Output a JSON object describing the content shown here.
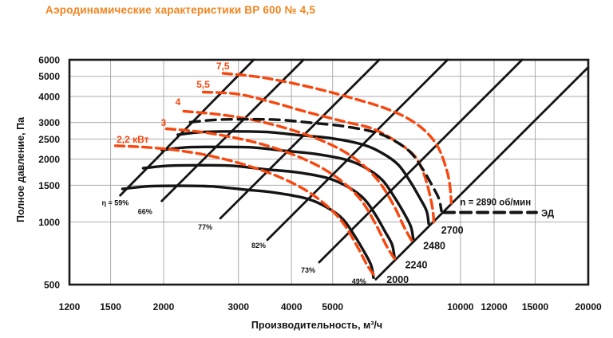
{
  "title": "Аэродинамические характеристики ВР 600 № 4,5",
  "colors": {
    "title": "#f5831d",
    "power_curves": "#f8470e",
    "rpm_curves": "#141414",
    "grid": "#ababab",
    "plot_border": "#1a1a1a",
    "background": "#ffffff"
  },
  "chart_data": {
    "type": "line",
    "title": "Аэродинамические характеристики ВР 600 № 4,5",
    "xlabel": "Производительность, м³/ч",
    "ylabel": "Полное давление, Па",
    "x_scale": "log",
    "y_scale": "log",
    "xlim": [
      1200,
      20000
    ],
    "ylim": [
      500,
      6000
    ],
    "x_ticks": [
      "1200",
      "1500",
      "2000",
      "3000",
      "4000",
      "5000",
      "10000",
      "12000",
      "15000",
      "20000"
    ],
    "x_tick_values": [
      1200,
      1500,
      2000,
      3000,
      4000,
      5000,
      10000,
      12000,
      15000,
      20000
    ],
    "y_ticks": [
      "6000",
      "5000",
      "4000",
      "3000",
      "2500",
      "2000",
      "1500",
      "1000",
      "500"
    ],
    "y_tick_values": [
      6000,
      5000,
      4000,
      3000,
      2500,
      2000,
      1500,
      1000,
      500
    ],
    "grid": true,
    "legend_position": "inline",
    "series": [
      {
        "id": "rpm-curve-2000",
        "name": "n = 2000 об/мин",
        "role": "rpm",
        "style": "solid",
        "points": [
          [
            1600,
            1440
          ],
          [
            1830,
            1480
          ],
          [
            2180,
            1490
          ],
          [
            2590,
            1480
          ],
          [
            3080,
            1430
          ],
          [
            3670,
            1380
          ],
          [
            4360,
            1290
          ],
          [
            4860,
            1170
          ],
          [
            5290,
            1030
          ],
          [
            5630,
            860
          ],
          [
            5930,
            720
          ],
          [
            6160,
            620
          ],
          [
            6240,
            540
          ]
        ]
      },
      {
        "id": "rpm-curve-2240",
        "name": "n = 2240 об/мин",
        "role": "rpm",
        "style": "solid",
        "points": [
          [
            1790,
            1810
          ],
          [
            2050,
            1860
          ],
          [
            2440,
            1870
          ],
          [
            2900,
            1860
          ],
          [
            3450,
            1790
          ],
          [
            4110,
            1730
          ],
          [
            4880,
            1620
          ],
          [
            5440,
            1470
          ],
          [
            5930,
            1290
          ],
          [
            6310,
            1080
          ],
          [
            6640,
            900
          ],
          [
            6900,
            780
          ],
          [
            6990,
            680
          ]
        ]
      },
      {
        "id": "rpm-curve-2480",
        "name": "n = 2480 об/мин",
        "role": "rpm",
        "style": "solid",
        "points": [
          [
            1980,
            2210
          ],
          [
            2270,
            2280
          ],
          [
            2700,
            2290
          ],
          [
            3210,
            2280
          ],
          [
            3820,
            2200
          ],
          [
            4550,
            2120
          ],
          [
            5410,
            1980
          ],
          [
            6030,
            1800
          ],
          [
            6560,
            1580
          ],
          [
            6980,
            1320
          ],
          [
            7350,
            1110
          ],
          [
            7640,
            950
          ],
          [
            7740,
            830
          ]
        ]
      },
      {
        "id": "rpm-curve-2700",
        "name": "n = 2700 об/мин",
        "role": "rpm",
        "style": "solid",
        "points": [
          [
            2160,
            2620
          ],
          [
            2470,
            2700
          ],
          [
            2940,
            2720
          ],
          [
            3500,
            2700
          ],
          [
            4160,
            2610
          ],
          [
            4960,
            2520
          ],
          [
            5890,
            2350
          ],
          [
            6560,
            2130
          ],
          [
            7140,
            1880
          ],
          [
            7600,
            1570
          ],
          [
            8010,
            1310
          ],
          [
            8320,
            1130
          ],
          [
            8420,
            980
          ]
        ]
      },
      {
        "id": "motor-curve-2890",
        "name": "n = 2890 об/мин (ЭД)",
        "role": "motor",
        "style": "dashed",
        "points": [
          [
            2310,
            3010
          ],
          [
            2650,
            3090
          ],
          [
            3150,
            3110
          ],
          [
            3740,
            3090
          ],
          [
            4450,
            2990
          ],
          [
            5300,
            2880
          ],
          [
            6300,
            2690
          ],
          [
            7020,
            2440
          ],
          [
            7640,
            2150
          ],
          [
            8140,
            1800
          ],
          [
            8570,
            1500
          ],
          [
            8900,
            1290
          ],
          [
            9020,
            1130
          ]
        ]
      },
      {
        "id": "power-curve-2-2kw",
        "name": "2,2 кВт",
        "role": "power",
        "style": "dashed",
        "points": [
          [
            1540,
            2320
          ],
          [
            1830,
            2280
          ],
          [
            2180,
            2200
          ],
          [
            2590,
            2070
          ],
          [
            3080,
            1890
          ],
          [
            3670,
            1670
          ],
          [
            4270,
            1440
          ],
          [
            4810,
            1210
          ],
          [
            5290,
            990
          ],
          [
            5720,
            760
          ],
          [
            6030,
            620
          ],
          [
            6320,
            540
          ]
        ]
      },
      {
        "id": "power-curve-3kw",
        "name": "3 кВт",
        "role": "power",
        "style": "dashed",
        "points": [
          [
            2030,
            2800
          ],
          [
            2420,
            2710
          ],
          [
            2870,
            2560
          ],
          [
            3410,
            2360
          ],
          [
            4070,
            2090
          ],
          [
            4730,
            1810
          ],
          [
            5330,
            1530
          ],
          [
            5870,
            1250
          ],
          [
            6340,
            960
          ],
          [
            6690,
            770
          ],
          [
            7010,
            660
          ]
        ]
      },
      {
        "id": "power-curve-4kw",
        "name": "4 кВт",
        "role": "power",
        "style": "dashed",
        "points": [
          [
            2230,
            3400
          ],
          [
            2660,
            3290
          ],
          [
            3160,
            3120
          ],
          [
            3760,
            2870
          ],
          [
            4480,
            2560
          ],
          [
            5210,
            2230
          ],
          [
            5870,
            1890
          ],
          [
            6460,
            1540
          ],
          [
            6980,
            1190
          ],
          [
            7360,
            950
          ],
          [
            7710,
            800
          ]
        ]
      },
      {
        "id": "power-curve-5-5kw",
        "name": "5,5 кВт",
        "role": "power",
        "style": "dashed",
        "points": [
          [
            2480,
            4200
          ],
          [
            2980,
            4110
          ],
          [
            3590,
            3760
          ],
          [
            4320,
            3380
          ],
          [
            5290,
            3040
          ],
          [
            6240,
            2790
          ],
          [
            7170,
            2380
          ],
          [
            7820,
            2060
          ],
          [
            8200,
            1700
          ],
          [
            8470,
            1350
          ],
          [
            8610,
            1130
          ],
          [
            8660,
            990
          ]
        ]
      },
      {
        "id": "power-curve-7-5kw",
        "name": "7,5 кВт",
        "role": "power",
        "style": "dashed",
        "points": [
          [
            2760,
            5170
          ],
          [
            3280,
            4990
          ],
          [
            3910,
            4690
          ],
          [
            4740,
            4290
          ],
          [
            5630,
            3900
          ],
          [
            6580,
            3540
          ],
          [
            7490,
            3150
          ],
          [
            8280,
            2720
          ],
          [
            8860,
            2280
          ],
          [
            9240,
            1830
          ],
          [
            9430,
            1530
          ],
          [
            9520,
            1230
          ]
        ]
      },
      {
        "id": "eff-line-59",
        "name": "η = 59%",
        "role": "efficiency",
        "style": "solid",
        "points": [
          [
            1580,
            1340
          ],
          [
            3260,
            6000
          ]
        ]
      },
      {
        "id": "eff-line-66",
        "name": "66%",
        "role": "efficiency",
        "style": "solid",
        "points": [
          [
            1980,
            1260
          ],
          [
            4270,
            6000
          ]
        ]
      },
      {
        "id": "eff-line-77",
        "name": "77%",
        "role": "efficiency",
        "style": "solid",
        "points": [
          [
            2720,
            1040
          ],
          [
            6440,
            6000
          ]
        ]
      },
      {
        "id": "eff-line-82",
        "name": "82%",
        "role": "efficiency",
        "style": "solid",
        "points": [
          [
            3510,
            820
          ],
          [
            9330,
            6000
          ]
        ]
      },
      {
        "id": "eff-line-73",
        "name": "73%",
        "role": "efficiency",
        "style": "solid",
        "points": [
          [
            4650,
            640
          ],
          [
            13970,
            6000
          ]
        ]
      },
      {
        "id": "eff-line-49",
        "name": "49%",
        "role": "efficiency",
        "style": "solid",
        "points": [
          [
            6320,
            530
          ],
          [
            19930,
            5490
          ]
        ]
      },
      {
        "id": "legend-dash-line",
        "name": "ЭД — образец линии",
        "role": "legend",
        "style": "dashed",
        "points": [
          [
            9140,
            1110
          ],
          [
            15090,
            1110
          ]
        ]
      }
    ],
    "annotations": [
      {
        "id": "label-power-2-2kw",
        "text": "2,2 кВт",
        "q": 1550,
        "p": 2400,
        "cls": "power"
      },
      {
        "id": "label-power-3kw",
        "text": "3",
        "q": 1970,
        "p": 2890,
        "cls": "power"
      },
      {
        "id": "label-power-4kw",
        "text": "4",
        "q": 2130,
        "p": 3630,
        "cls": "power"
      },
      {
        "id": "label-power-5-5kw",
        "text": "5,5",
        "q": 2390,
        "p": 4410,
        "cls": "power"
      },
      {
        "id": "label-power-7-5kw",
        "text": "7,5",
        "q": 2660,
        "p": 5400,
        "cls": "power"
      },
      {
        "id": "label-eff-59",
        "text": "η = 59%",
        "q": 1430,
        "p": 1200,
        "cls": "eff"
      },
      {
        "id": "label-eff-66",
        "text": "66%",
        "q": 1740,
        "p": 1090,
        "cls": "eff"
      },
      {
        "id": "label-eff-77",
        "text": "77%",
        "q": 2410,
        "p": 920,
        "cls": "eff"
      },
      {
        "id": "label-eff-82",
        "text": "82%",
        "q": 3220,
        "p": 750,
        "cls": "eff"
      },
      {
        "id": "label-eff-73",
        "text": "73%",
        "q": 4210,
        "p": 570,
        "cls": "eff"
      },
      {
        "id": "label-eff-49",
        "text": "49%",
        "q": 5550,
        "p": 505,
        "cls": "eff"
      },
      {
        "id": "label-rpm-2000",
        "text": "2000",
        "q": 6700,
        "p": 510,
        "cls": "rpm"
      },
      {
        "id": "label-rpm-2240",
        "text": "2240",
        "q": 7410,
        "p": 600,
        "cls": "rpm"
      },
      {
        "id": "label-rpm-2480",
        "text": "2480",
        "q": 8170,
        "p": 740,
        "cls": "rpm"
      },
      {
        "id": "label-rpm-2700",
        "text": "2700",
        "q": 9010,
        "p": 880,
        "cls": "rpm"
      },
      {
        "id": "label-motor-speed",
        "text": "n = 2890 об/мин",
        "q": 9980,
        "p": 1200,
        "cls": "legend"
      },
      {
        "id": "label-ed",
        "text": "ЭД",
        "q": 15490,
        "p": 1060,
        "cls": "legend"
      }
    ]
  }
}
